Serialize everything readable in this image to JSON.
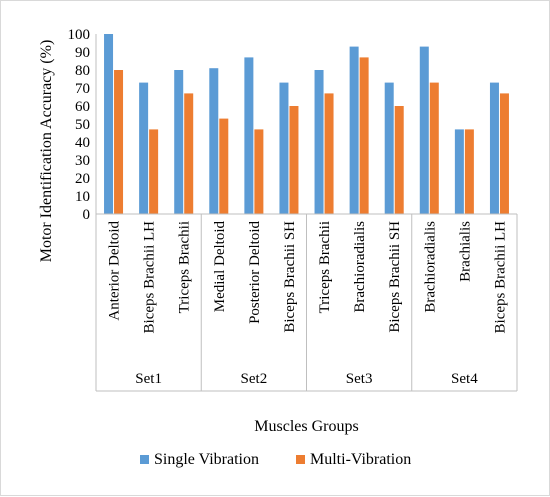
{
  "chart_data": {
    "type": "bar",
    "ylabel": "Motor Identification Accuracy (%)",
    "xlabel": "Muscles Groups",
    "ylim": [
      0,
      100
    ],
    "yticks": [
      0,
      10,
      20,
      30,
      40,
      50,
      60,
      70,
      80,
      90,
      100
    ],
    "groups": [
      {
        "label": "Set1",
        "count": 3
      },
      {
        "label": "Set2",
        "count": 3
      },
      {
        "label": "Set3",
        "count": 3
      },
      {
        "label": "Set4",
        "count": 3
      }
    ],
    "categories": [
      "Anterior Deltoid",
      "Biceps Brachii LH",
      "Triceps Brachii",
      "Medial Deltoid",
      "Posterior Deltoid",
      "Biceps Brachii SH",
      "Triceps Brachii",
      "Brachioradialis",
      "Biceps Brachii SH",
      "Brachioradialis",
      "Brachialis",
      "Biceps Brachii LH"
    ],
    "series": [
      {
        "name": "Single Vibration",
        "color": "#5B9BD5",
        "values": [
          100,
          73,
          80,
          81,
          87,
          73,
          80,
          93,
          73,
          93,
          47,
          73
        ]
      },
      {
        "name": "Multi-Vibration",
        "color": "#ED7D31",
        "values": [
          80,
          47,
          67,
          53,
          47,
          60,
          67,
          87,
          60,
          73,
          47,
          67
        ]
      }
    ],
    "grid": false,
    "legend": "bottom"
  }
}
